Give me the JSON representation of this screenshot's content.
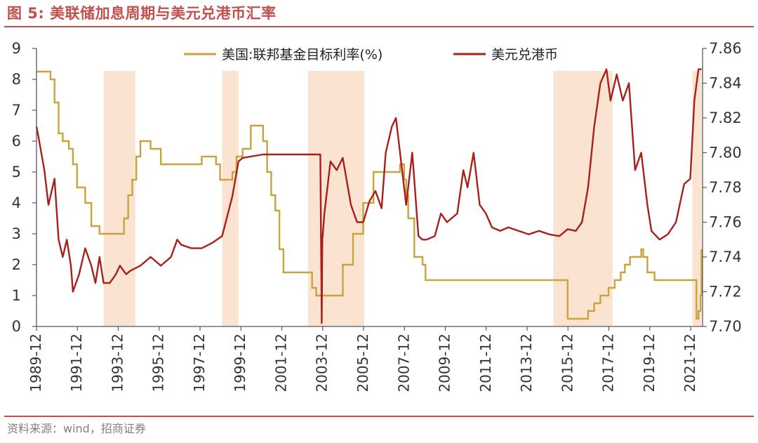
{
  "header": {
    "title": "图 5:  美联储加息周期与美元兑港币汇率"
  },
  "footer": {
    "source": "资料来源：wind，招商证券"
  },
  "colors": {
    "accent": "#c0504d",
    "fed_rate": "#c9a43c",
    "usdhkd": "#a8201a",
    "shade": "#fbe3d2",
    "axis": "#595959"
  },
  "chart_data": {
    "type": "line",
    "title": "",
    "xlabel": "",
    "ylabel": "",
    "ylabel_right": "",
    "grid": false,
    "legend_position": "top",
    "x_domain": [
      1989.917,
      2022.5
    ],
    "ylim_left": [
      0,
      9
    ],
    "ylim_right": [
      7.7,
      7.86
    ],
    "yticks_left": [
      "0",
      "1",
      "2",
      "3",
      "4",
      "5",
      "6",
      "7",
      "8",
      "9"
    ],
    "yticks_right": [
      "7.70",
      "7.72",
      "7.74",
      "7.76",
      "7.78",
      "7.80",
      "7.82",
      "7.84",
      "7.86"
    ],
    "xticks": [
      "1989-12",
      "1991-12",
      "1993-12",
      "1995-12",
      "1997-12",
      "1999-12",
      "2001-12",
      "2003-12",
      "2005-12",
      "2007-12",
      "2009-12",
      "2011-12",
      "2013-12",
      "2015-12",
      "2017-12",
      "2019-12",
      "2021-12"
    ],
    "shaded_periods": [
      {
        "start": 1993.2,
        "end": 1994.75
      },
      {
        "start": 1999.0,
        "end": 1999.8
      },
      {
        "start": 2003.2,
        "end": 2005.95
      },
      {
        "start": 2015.2,
        "end": 2018.1
      },
      {
        "start": 2022.0,
        "end": 2022.45
      }
    ],
    "series": [
      {
        "name": "美国:联邦基金目标利率(%)",
        "axis": "left",
        "x": [
          1989.917,
          1990.4,
          1990.6,
          1990.8,
          1991.0,
          1991.2,
          1991.5,
          1991.7,
          1991.9,
          1992.3,
          1992.6,
          1993.0,
          1993.5,
          1994.0,
          1994.2,
          1994.4,
          1994.6,
          1994.8,
          1995.0,
          1995.5,
          1996.0,
          1997.0,
          1998.0,
          1998.7,
          1998.9,
          1999.5,
          1999.7,
          2000.0,
          2000.4,
          2001.0,
          2001.2,
          2001.4,
          2001.6,
          2001.8,
          2002.0,
          2002.8,
          2003.4,
          2003.6,
          2004.4,
          2004.9,
          2005.4,
          2005.9,
          2006.4,
          2007.7,
          2007.9,
          2008.0,
          2008.1,
          2008.4,
          2008.8,
          2008.95,
          2015.9,
          2016.9,
          2017.2,
          2017.5,
          2017.9,
          2018.2,
          2018.5,
          2018.7,
          2018.95,
          2019.5,
          2019.6,
          2019.8,
          2020.15,
          2022.2,
          2022.3,
          2022.4,
          2022.45
        ],
        "values": [
          8.25,
          8.25,
          8.0,
          7.25,
          6.25,
          6.0,
          5.75,
          5.25,
          4.5,
          4.0,
          3.25,
          3.0,
          3.0,
          3.0,
          3.5,
          4.25,
          4.75,
          5.5,
          6.0,
          5.75,
          5.25,
          5.25,
          5.5,
          5.25,
          4.75,
          5.0,
          5.5,
          5.75,
          6.5,
          6.0,
          5.0,
          4.25,
          3.75,
          2.5,
          1.75,
          1.75,
          1.25,
          1.0,
          1.0,
          2.0,
          3.0,
          4.0,
          5.0,
          5.25,
          4.75,
          4.25,
          3.5,
          2.25,
          2.0,
          1.5,
          0.25,
          0.5,
          0.75,
          1.0,
          1.25,
          1.5,
          1.75,
          2.0,
          2.25,
          2.5,
          2.25,
          1.75,
          1.5,
          0.25,
          0.5,
          1.0,
          2.5
        ]
      },
      {
        "name": "美元兑港币",
        "axis": "right",
        "x": [
          1989.917,
          1990.0,
          1990.3,
          1990.5,
          1990.8,
          1991.0,
          1991.2,
          1991.4,
          1991.6,
          1991.7,
          1992.0,
          1992.3,
          1992.6,
          1992.8,
          1993.0,
          1993.2,
          1993.5,
          1993.8,
          1994.0,
          1994.3,
          1994.5,
          1995.0,
          1995.5,
          1996.0,
          1996.5,
          1996.8,
          1997.0,
          1997.5,
          1998.0,
          1998.5,
          1999.0,
          1999.5,
          1999.8,
          2000.0,
          2000.5,
          2001.0,
          2002.0,
          2003.0,
          2003.8,
          2003.87,
          2003.9,
          2004.0,
          2004.3,
          2004.6,
          2004.9,
          2005.3,
          2005.6,
          2005.9,
          2006.2,
          2006.5,
          2006.8,
          2007.0,
          2007.3,
          2007.5,
          2007.8,
          2008.0,
          2008.3,
          2008.6,
          2008.8,
          2009.0,
          2009.4,
          2009.7,
          2010.0,
          2010.5,
          2010.8,
          2011.0,
          2011.3,
          2011.6,
          2011.9,
          2012.2,
          2012.6,
          2013.0,
          2013.5,
          2014.0,
          2014.5,
          2015.0,
          2015.5,
          2015.9,
          2016.3,
          2016.6,
          2016.9,
          2017.2,
          2017.5,
          2017.8,
          2018.0,
          2018.3,
          2018.6,
          2018.9,
          2019.2,
          2019.5,
          2019.8,
          2020.0,
          2020.4,
          2020.8,
          2021.2,
          2021.6,
          2021.9,
          2022.1,
          2022.3,
          2022.45
        ],
        "values": [
          7.815,
          7.81,
          7.79,
          7.77,
          7.785,
          7.75,
          7.74,
          7.75,
          7.735,
          7.72,
          7.73,
          7.745,
          7.735,
          7.725,
          7.74,
          7.725,
          7.725,
          7.73,
          7.735,
          7.73,
          7.732,
          7.735,
          7.74,
          7.735,
          7.74,
          7.75,
          7.747,
          7.745,
          7.745,
          7.748,
          7.752,
          7.775,
          7.795,
          7.797,
          7.798,
          7.799,
          7.799,
          7.799,
          7.799,
          7.702,
          7.75,
          7.765,
          7.795,
          7.79,
          7.797,
          7.77,
          7.76,
          7.76,
          7.772,
          7.778,
          7.768,
          7.8,
          7.815,
          7.82,
          7.79,
          7.77,
          7.8,
          7.752,
          7.75,
          7.75,
          7.752,
          7.765,
          7.76,
          7.765,
          7.79,
          7.78,
          7.8,
          7.77,
          7.765,
          7.757,
          7.755,
          7.757,
          7.755,
          7.753,
          7.755,
          7.753,
          7.752,
          7.756,
          7.755,
          7.76,
          7.78,
          7.815,
          7.84,
          7.848,
          7.83,
          7.845,
          7.83,
          7.84,
          7.79,
          7.8,
          7.77,
          7.755,
          7.75,
          7.753,
          7.76,
          7.782,
          7.785,
          7.83,
          7.848,
          7.848
        ]
      }
    ]
  }
}
